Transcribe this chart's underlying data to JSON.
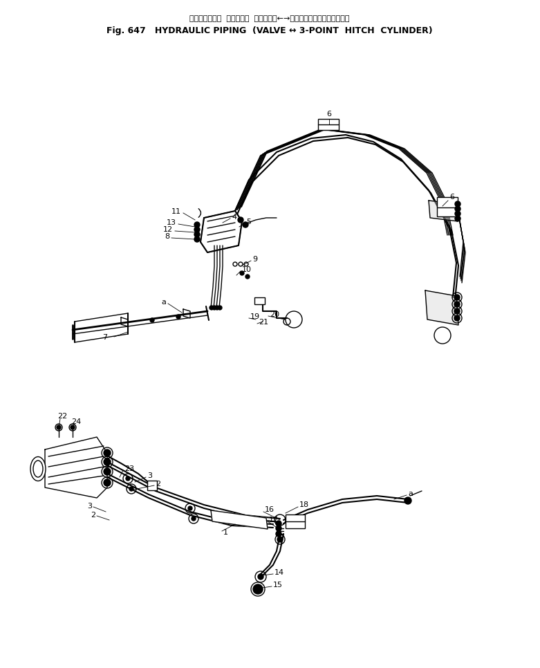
{
  "title_japanese": "ハイドロリック  パイピング  バルブ　　←→　　３点　ヒッチ　シリンダ",
  "title_english": "Fig. 647   HYDRAULIC PIPING  (VALVE ↔ 3-POINT  HITCH  CYLINDER)",
  "bg_color": "#ffffff",
  "line_color": "#000000",
  "fig_width": 7.81,
  "fig_height": 9.66,
  "dpi": 100
}
